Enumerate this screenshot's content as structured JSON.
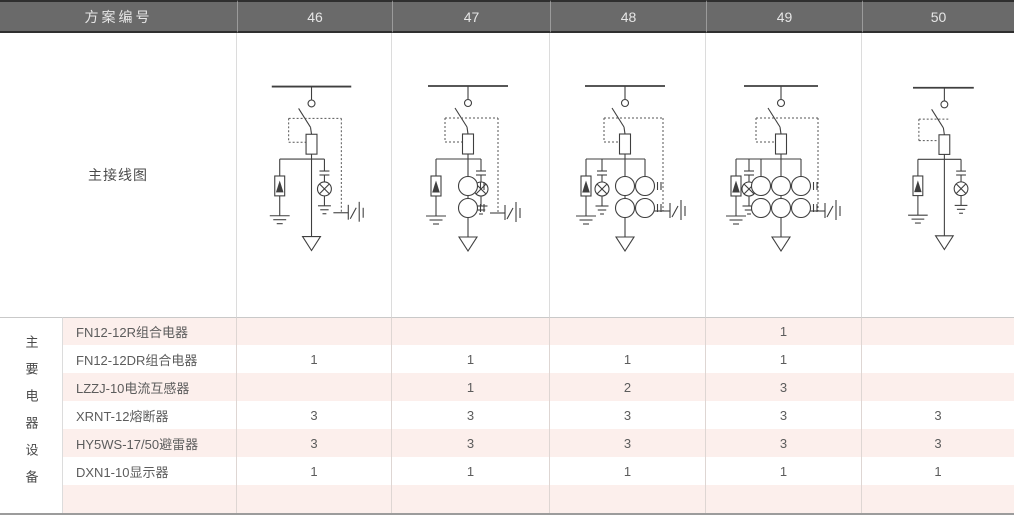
{
  "header": {
    "label": "方案编号",
    "schemes": [
      "46",
      "47",
      "48",
      "49",
      "50"
    ]
  },
  "diagram_row": {
    "label": "主接线图"
  },
  "side_label": "主要电器设备",
  "equipment": {
    "rows": [
      {
        "name": "FN12-12R组合电器",
        "counts": [
          "",
          "",
          "",
          "1",
          ""
        ]
      },
      {
        "name": "FN12-12DR组合电器",
        "counts": [
          "1",
          "1",
          "1",
          "1",
          ""
        ]
      },
      {
        "name": "LZZJ-10电流互感器",
        "counts": [
          "",
          "1",
          "2",
          "3",
          ""
        ]
      },
      {
        "name": "XRNT-12熔断器",
        "counts": [
          "3",
          "3",
          "3",
          "3",
          "3"
        ]
      },
      {
        "name": "HY5WS-17/50避雷器",
        "counts": [
          "3",
          "3",
          "3",
          "3",
          "3"
        ]
      },
      {
        "name": "DXN1-10显示器",
        "counts": [
          "1",
          "1",
          "1",
          "1",
          "1"
        ]
      },
      {
        "name": "",
        "counts": [
          "",
          "",
          "",
          "",
          ""
        ]
      }
    ]
  },
  "diagrams": [
    {
      "scheme": "46",
      "ct_pairs": 0,
      "lamp_side": "right",
      "earthing_link": true
    },
    {
      "scheme": "47",
      "ct_pairs": 1,
      "lamp_side": "right",
      "earthing_link": true
    },
    {
      "scheme": "48",
      "ct_pairs": 2,
      "lamp_side": "left",
      "earthing_link": true
    },
    {
      "scheme": "49",
      "ct_pairs": 3,
      "lamp_side": "left",
      "earthing_link": true
    },
    {
      "scheme": "50",
      "ct_pairs": 0,
      "lamp_side": "right",
      "earthing_link": false
    }
  ],
  "colors": {
    "header_bg": "#6a6a6a",
    "header_text": "#e6e6e6",
    "row_stripe_pink": "#fcefec",
    "row_white": "#ffffff",
    "grid_line": "#dcdcdc",
    "diagram_stroke": "#3f3f3f",
    "body_text": "#5c5c5c"
  }
}
